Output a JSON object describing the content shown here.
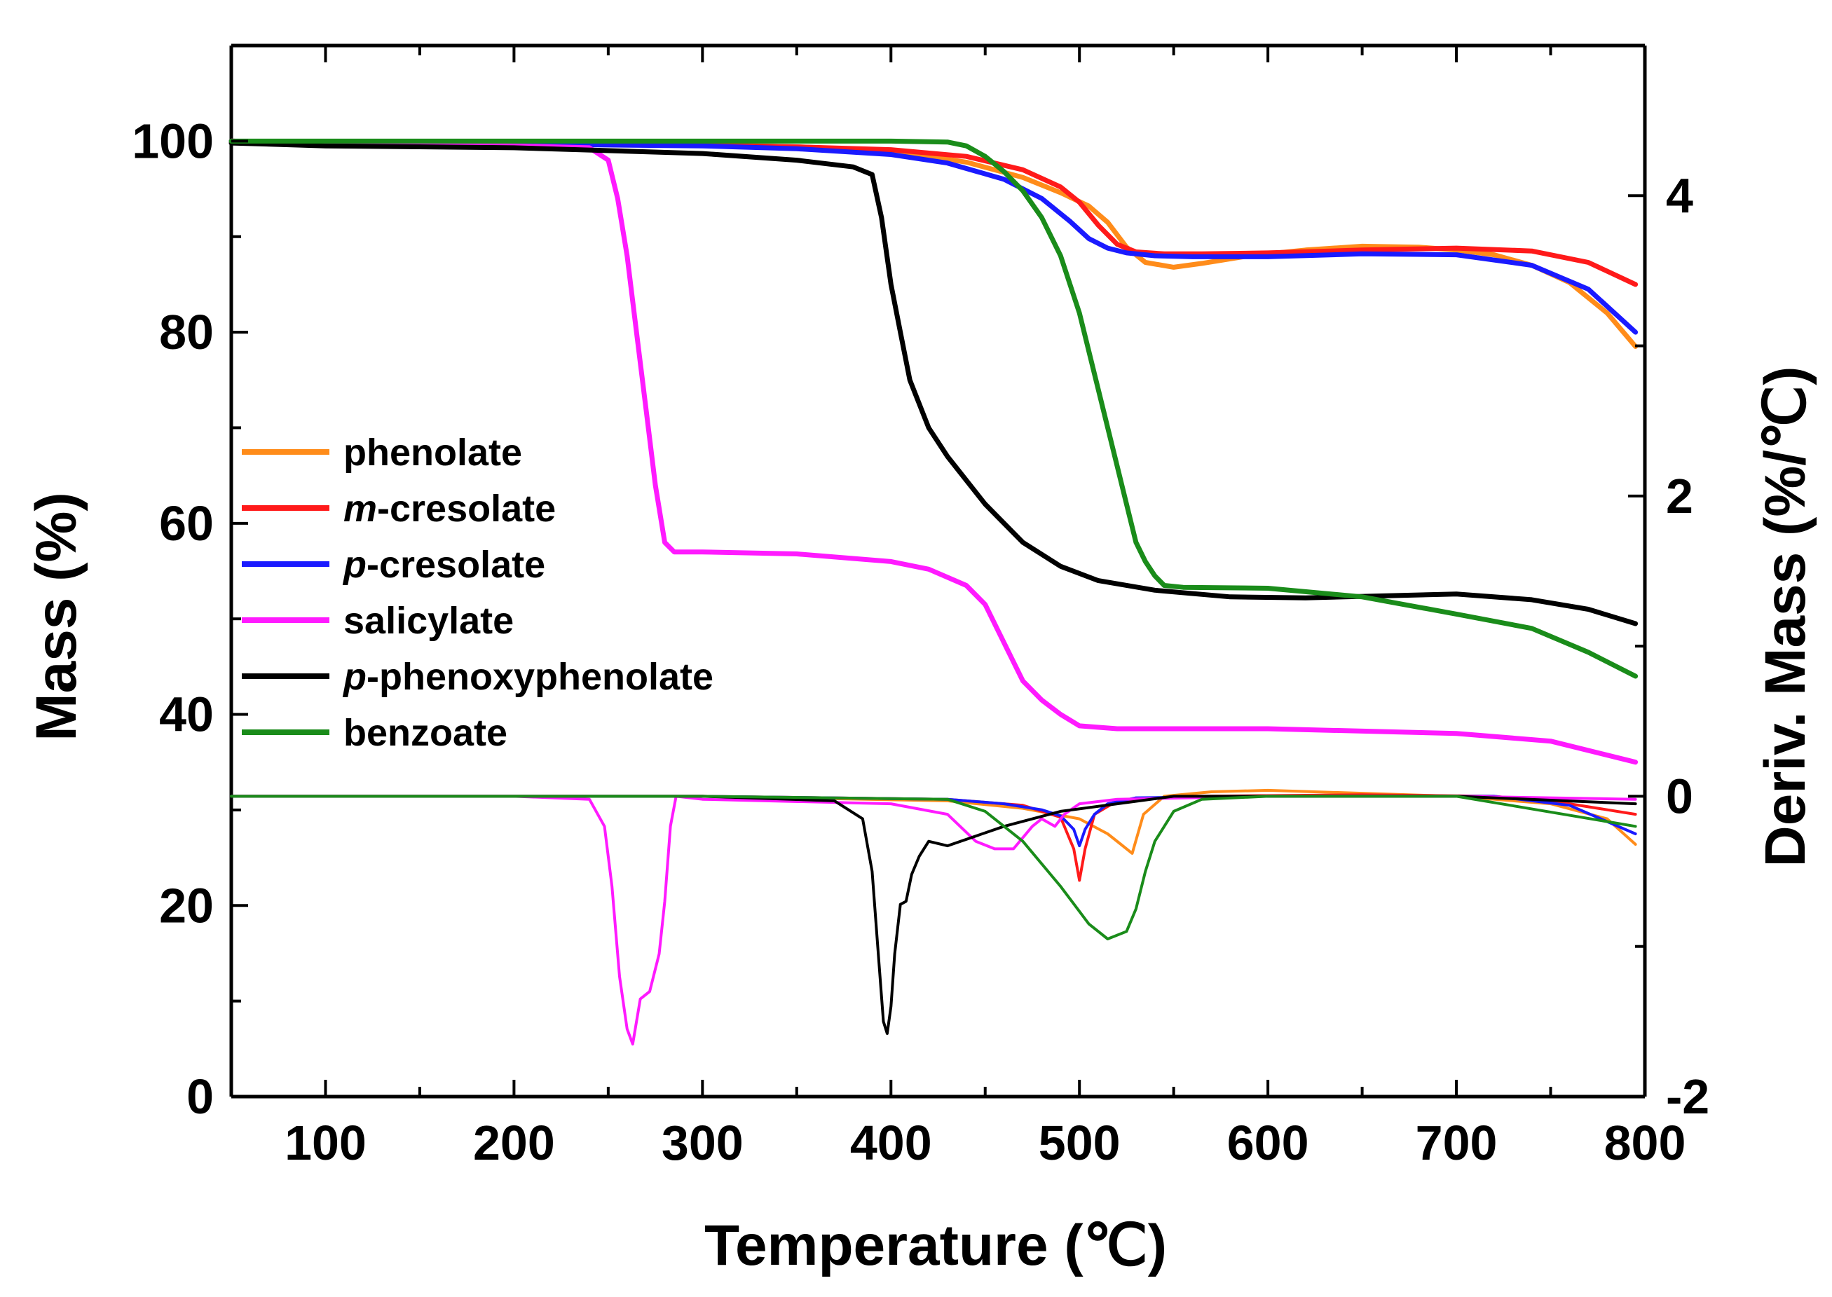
{
  "chart_data": {
    "type": "line",
    "title": "",
    "xlabel": "Temperature (℃)",
    "ylabel": "Mass (%)",
    "y2label": "Deriv. Mass (%/℃)",
    "xlim": [
      50,
      800
    ],
    "ylim": [
      0,
      110
    ],
    "y2lim": [
      -2,
      5
    ],
    "xticks": [
      100,
      200,
      300,
      400,
      500,
      600,
      700,
      800
    ],
    "yticks": [
      0,
      20,
      40,
      60,
      80,
      100
    ],
    "y2ticks": [
      -2,
      0,
      2,
      4
    ],
    "y2tick_labels": [
      "-2",
      "0",
      "2",
      "4"
    ],
    "legend_position": "center-left",
    "series": [
      {
        "name": "phenolate",
        "prefix": "",
        "suffix": "phenolate",
        "color": "#ff8c1a",
        "mass_x": [
          50,
          100,
          200,
          300,
          350,
          400,
          440,
          470,
          490,
          505,
          515,
          525,
          535,
          550,
          565,
          590,
          620,
          650,
          680,
          700,
          720,
          740,
          760,
          780,
          795
        ],
        "mass_y": [
          100,
          99.8,
          99.7,
          99.6,
          99.4,
          99.0,
          97.8,
          96.2,
          94.6,
          93.2,
          91.5,
          88.9,
          87.3,
          86.8,
          87.2,
          88.0,
          88.6,
          89.0,
          88.9,
          88.6,
          88.1,
          87.0,
          85.2,
          82.0,
          78.5
        ],
        "deriv_x": [
          50,
          150,
          300,
          430,
          470,
          500,
          515,
          522,
          528,
          534,
          545,
          570,
          600,
          700,
          750,
          780,
          795
        ],
        "deriv_y": [
          0,
          0,
          0,
          -0.03,
          -0.08,
          -0.15,
          -0.25,
          -0.32,
          -0.38,
          -0.12,
          0,
          0.03,
          0.04,
          0.0,
          -0.05,
          -0.15,
          -0.32
        ]
      },
      {
        "name": "m-cresolate",
        "prefix": "m",
        "suffix": "-cresolate",
        "color": "#ff1a1a",
        "mass_x": [
          50,
          100,
          200,
          300,
          350,
          400,
          440,
          470,
          490,
          500,
          510,
          520,
          530,
          545,
          565,
          600,
          650,
          700,
          740,
          770,
          795
        ],
        "mass_y": [
          100,
          99.8,
          99.7,
          99.6,
          99.4,
          99.1,
          98.4,
          97.0,
          95.2,
          93.6,
          91.2,
          89.2,
          88.4,
          88.2,
          88.2,
          88.3,
          88.6,
          88.8,
          88.5,
          87.3,
          85.0
        ],
        "deriv_x": [
          50,
          300,
          430,
          470,
          490,
          497,
          500,
          503,
          508,
          520,
          560,
          650,
          720,
          760,
          795
        ],
        "deriv_y": [
          0,
          0,
          -0.02,
          -0.06,
          -0.14,
          -0.35,
          -0.56,
          -0.35,
          -0.12,
          -0.03,
          0,
          0.01,
          0,
          -0.05,
          -0.12
        ]
      },
      {
        "name": "p-cresolate",
        "prefix": "p",
        "suffix": "-cresolate",
        "color": "#1a1aff",
        "mass_x": [
          50,
          100,
          200,
          300,
          350,
          400,
          430,
          460,
          480,
          495,
          505,
          515,
          525,
          540,
          560,
          600,
          650,
          700,
          740,
          770,
          795
        ],
        "mass_y": [
          100,
          99.8,
          99.7,
          99.5,
          99.2,
          98.6,
          97.7,
          96.0,
          94.0,
          91.6,
          89.8,
          88.8,
          88.3,
          88.0,
          87.9,
          87.9,
          88.2,
          88.1,
          87.0,
          84.5,
          80.0
        ],
        "deriv_x": [
          50,
          300,
          430,
          460,
          480,
          490,
          497,
          500,
          503,
          508,
          515,
          530,
          600,
          720,
          760,
          795
        ],
        "deriv_y": [
          0,
          0,
          -0.02,
          -0.05,
          -0.09,
          -0.13,
          -0.22,
          -0.33,
          -0.22,
          -0.12,
          -0.05,
          -0.01,
          0,
          0,
          -0.06,
          -0.25
        ]
      },
      {
        "name": "salicylate",
        "prefix": "",
        "suffix": "salicylate",
        "color": "#ff1aff",
        "mass_x": [
          50,
          150,
          200,
          240,
          250,
          255,
          260,
          265,
          270,
          275,
          280,
          285,
          300,
          350,
          400,
          420,
          440,
          450,
          460,
          470,
          480,
          490,
          500,
          520,
          600,
          700,
          750,
          795
        ],
        "mass_y": [
          100,
          99.7,
          99.5,
          99.3,
          98.0,
          94.0,
          88.0,
          80.0,
          72.0,
          64.0,
          58.0,
          57.0,
          57.0,
          56.8,
          56.0,
          55.2,
          53.5,
          51.5,
          47.5,
          43.5,
          41.5,
          40.0,
          38.8,
          38.5,
          38.5,
          38.0,
          37.2,
          35.0
        ],
        "deriv_x": [
          50,
          200,
          240,
          248,
          252,
          256,
          260,
          263,
          267,
          272,
          277,
          280,
          283,
          286,
          300,
          400,
          430,
          445,
          455,
          465,
          475,
          480,
          487,
          492,
          500,
          520,
          600,
          700,
          795
        ],
        "deriv_y": [
          0,
          0,
          -0.02,
          -0.2,
          -0.6,
          -1.2,
          -1.55,
          -1.65,
          -1.35,
          -1.3,
          -1.05,
          -0.7,
          -0.2,
          0,
          -0.02,
          -0.05,
          -0.12,
          -0.3,
          -0.35,
          -0.35,
          -0.2,
          -0.15,
          -0.2,
          -0.12,
          -0.05,
          -0.02,
          0,
          0,
          -0.02
        ]
      },
      {
        "name": "p-phenoxyphenolate",
        "prefix": "p",
        "suffix": "-phenoxyphenolate",
        "color": "#000000",
        "mass_x": [
          50,
          100,
          200,
          300,
          350,
          380,
          390,
          395,
          400,
          405,
          410,
          420,
          430,
          450,
          470,
          490,
          510,
          540,
          580,
          620,
          700,
          740,
          770,
          795
        ],
        "mass_y": [
          99.8,
          99.5,
          99.3,
          98.7,
          98.0,
          97.3,
          96.5,
          92.0,
          85.0,
          80.0,
          75.0,
          70.0,
          67.0,
          62.0,
          58.0,
          55.5,
          54.0,
          53.0,
          52.3,
          52.2,
          52.6,
          52.0,
          51.0,
          49.5
        ],
        "deriv_x": [
          50,
          200,
          300,
          370,
          385,
          390,
          393,
          396,
          398,
          400,
          402,
          405,
          408,
          411,
          415,
          420,
          430,
          460,
          490,
          520,
          550,
          600,
          700,
          795
        ],
        "deriv_y": [
          0,
          0,
          0,
          -0.03,
          -0.15,
          -0.5,
          -1.0,
          -1.5,
          -1.58,
          -1.4,
          -1.05,
          -0.72,
          -0.7,
          -0.52,
          -0.4,
          -0.3,
          -0.33,
          -0.2,
          -0.1,
          -0.05,
          0,
          0,
          0,
          -0.05
        ]
      },
      {
        "name": "benzoate",
        "prefix": "",
        "suffix": "benzoate",
        "color": "#1a8c1a",
        "mass_x": [
          50,
          100,
          200,
          300,
          400,
          430,
          440,
          450,
          460,
          470,
          480,
          490,
          500,
          510,
          520,
          525,
          530,
          535,
          540,
          545,
          555,
          600,
          650,
          700,
          740,
          770,
          795
        ],
        "mass_y": [
          100,
          100,
          100,
          100,
          100,
          99.9,
          99.5,
          98.4,
          96.8,
          94.8,
          92.0,
          88.0,
          82.0,
          74.0,
          66.0,
          62.0,
          58.0,
          56.0,
          54.5,
          53.5,
          53.3,
          53.2,
          52.3,
          50.5,
          49.0,
          46.5,
          44.0
        ],
        "deriv_x": [
          50,
          300,
          430,
          450,
          470,
          490,
          505,
          515,
          525,
          530,
          535,
          540,
          550,
          565,
          600,
          700,
          795
        ],
        "deriv_y": [
          0,
          0,
          -0.02,
          -0.1,
          -0.3,
          -0.6,
          -0.85,
          -0.95,
          -0.9,
          -0.75,
          -0.5,
          -0.3,
          -0.1,
          -0.02,
          0,
          0,
          -0.2
        ]
      }
    ]
  }
}
